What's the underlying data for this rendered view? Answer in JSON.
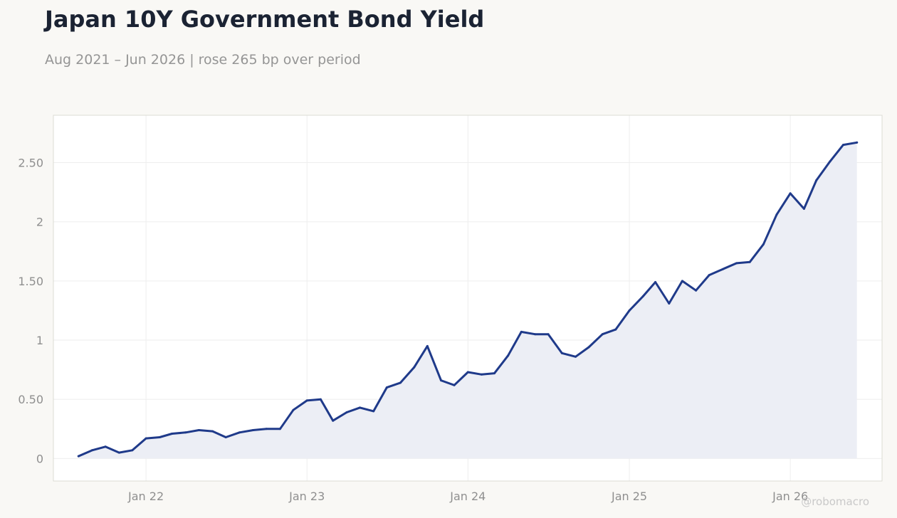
{
  "header": {
    "title": "Japan 10Y Government Bond Yield",
    "subtitle": "Aug 2021 – Jun 2026 | rose 265 bp over period"
  },
  "watermark": "@robomacro",
  "colors": {
    "background": "#f9f8f5",
    "plot_background": "#ffffff",
    "line": "#1f3a8a",
    "area_fill": "#eceef5",
    "grid": "#eeeeee",
    "frame": "#dcdcd4",
    "tick_text": "#8f8f8f",
    "title": "#1b2333",
    "subtitle": "#959595"
  },
  "chart_data": {
    "type": "area",
    "title": "Japan 10Y Government Bond Yield",
    "subtitle": "Aug 2021 – Jun 2026 | rose 265 bp over period",
    "xlabel": "",
    "ylabel": "",
    "grid": true,
    "legend": "none",
    "ylim": [
      -0.19,
      2.9
    ],
    "y_ticks": [
      0,
      0.5,
      1,
      1.5,
      2,
      2.5
    ],
    "y_tick_labels": [
      "0",
      "0.50",
      "1",
      "1.50",
      "2",
      "2.50"
    ],
    "x_range": [
      "2021-06-05",
      "2026-07-28"
    ],
    "x_ticks": [
      "2022-01",
      "2023-01",
      "2024-01",
      "2025-01",
      "2026-01"
    ],
    "x_tick_labels": [
      "Jan 22",
      "Jan 23",
      "Jan 24",
      "Jan 25",
      "Jan 26"
    ],
    "series": [
      {
        "x": [
          "2021-08",
          "2021-09",
          "2021-10",
          "2021-11",
          "2021-12",
          "2022-01",
          "2022-02",
          "2022-03",
          "2022-04",
          "2022-05",
          "2022-06",
          "2022-07",
          "2022-08",
          "2022-09",
          "2022-10",
          "2022-11",
          "2022-12",
          "2023-01",
          "2023-02",
          "2023-03",
          "2023-04",
          "2023-05",
          "2023-06",
          "2023-07",
          "2023-08",
          "2023-09",
          "2023-10",
          "2023-11",
          "2023-12",
          "2024-01",
          "2024-02",
          "2024-03",
          "2024-04",
          "2024-05",
          "2024-06",
          "2024-07",
          "2024-08",
          "2024-09",
          "2024-10",
          "2024-11",
          "2024-12",
          "2025-01",
          "2025-02",
          "2025-03",
          "2025-04",
          "2025-05",
          "2025-06",
          "2025-07",
          "2025-08",
          "2025-09",
          "2025-10",
          "2025-11",
          "2025-12",
          "2026-01",
          "2026-02",
          "2026-03",
          "2026-04",
          "2026-05",
          "2026-06"
        ],
        "values": [
          0.02,
          0.07,
          0.1,
          0.05,
          0.07,
          0.17,
          0.18,
          0.21,
          0.22,
          0.24,
          0.23,
          0.18,
          0.22,
          0.24,
          0.25,
          0.25,
          0.41,
          0.49,
          0.5,
          0.32,
          0.39,
          0.43,
          0.4,
          0.6,
          0.64,
          0.77,
          0.95,
          0.66,
          0.62,
          0.73,
          0.71,
          0.72,
          0.87,
          1.07,
          1.05,
          1.05,
          0.89,
          0.86,
          0.94,
          1.05,
          1.09,
          1.25,
          1.37,
          1.49,
          1.31,
          1.5,
          1.42,
          1.55,
          1.6,
          1.65,
          1.66,
          1.81,
          2.06,
          2.24,
          2.11,
          2.35,
          2.51,
          2.65,
          2.67
        ]
      }
    ]
  }
}
